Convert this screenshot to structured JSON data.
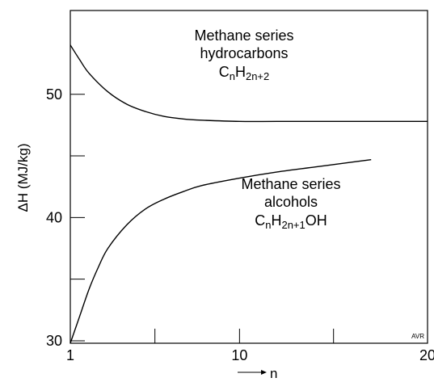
{
  "chart_data": {
    "type": "line",
    "xlabel": "n",
    "ylabel": "ΔH (MJ/kg)",
    "xlim": [
      1,
      20
    ],
    "ylim": [
      29.8,
      56.8
    ],
    "x_tick_labels": [
      {
        "value": 1,
        "label": "1"
      },
      {
        "value": 10,
        "label": "10"
      },
      {
        "value": 20,
        "label": "20"
      }
    ],
    "x_minor_ticks": [
      5.5,
      15
    ],
    "y_tick_labels": [
      {
        "value": 30,
        "label": "30"
      },
      {
        "value": 40,
        "label": "40"
      },
      {
        "value": 50,
        "label": "50"
      }
    ],
    "y_minor_ticks": [
      35,
      45
    ],
    "grid": false,
    "series": [
      {
        "key": "hydrocarbons",
        "points": [
          [
            1,
            54
          ],
          [
            1.5,
            52.8
          ],
          [
            2,
            51.7
          ],
          [
            3,
            50.2
          ],
          [
            4,
            49.2
          ],
          [
            5,
            48.6
          ],
          [
            6,
            48.2
          ],
          [
            7,
            48.0
          ],
          [
            8,
            47.9
          ],
          [
            10,
            47.8
          ],
          [
            12,
            47.8
          ],
          [
            15,
            47.8
          ],
          [
            20,
            47.8
          ]
        ]
      },
      {
        "key": "alcohols",
        "points": [
          [
            1,
            29.8
          ],
          [
            1.5,
            32.0
          ],
          [
            2,
            34.2
          ],
          [
            2.5,
            36.0
          ],
          [
            3,
            37.5
          ],
          [
            4,
            39.4
          ],
          [
            5,
            40.7
          ],
          [
            6,
            41.5
          ],
          [
            7,
            42.1
          ],
          [
            8,
            42.6
          ],
          [
            10,
            43.2
          ],
          [
            12,
            43.7
          ],
          [
            14,
            44.1
          ],
          [
            16,
            44.5
          ],
          [
            17,
            44.7
          ]
        ]
      }
    ],
    "annotations": {
      "hydrocarbons": {
        "line1": "Methane series",
        "line2": "hydrocarbons",
        "formula": [
          {
            "t": "C",
            "sub": false
          },
          {
            "t": "n",
            "sub": true
          },
          {
            "t": "H",
            "sub": false
          },
          {
            "t": "2n+2",
            "sub": true
          }
        ]
      },
      "alcohols": {
        "line1": "Methane series",
        "line2": "alcohols",
        "formula": [
          {
            "t": "C",
            "sub": false
          },
          {
            "t": "n",
            "sub": true
          },
          {
            "t": "H",
            "sub": false
          },
          {
            "t": "2n+1",
            "sub": true
          },
          {
            "t": "OH",
            "sub": false
          }
        ]
      }
    },
    "credit": "AVR",
    "colors": {
      "line": "#000000",
      "axis": "#000000",
      "background": "#ffffff"
    }
  }
}
